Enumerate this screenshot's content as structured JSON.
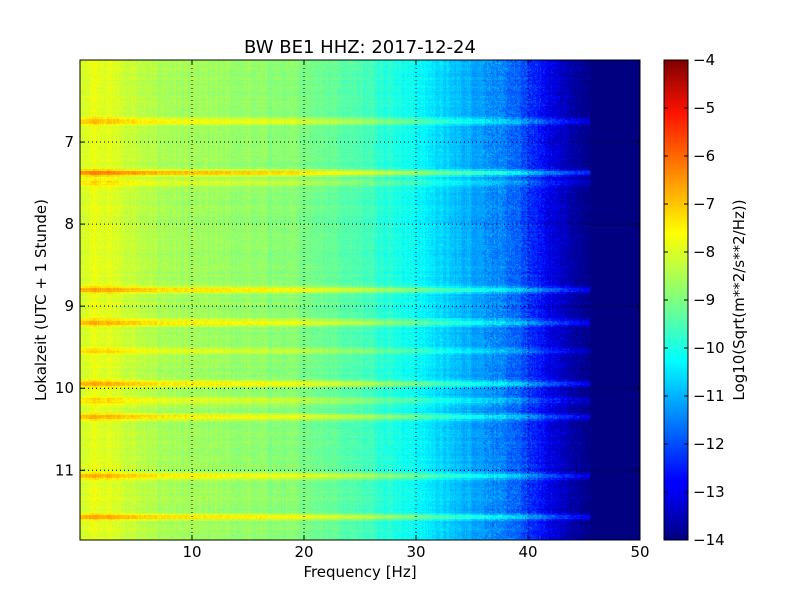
{
  "chart_data": {
    "type": "heatmap",
    "title": "BW BE1 HHZ: 2017-12-24",
    "xlabel": "Frequency [Hz]",
    "ylabel": "Lokalzeit (UTC + 1 Stunde)",
    "xlim": [
      0,
      50
    ],
    "ylim": [
      6.0,
      11.85
    ],
    "y_inverted": true,
    "x_ticks": [
      10,
      20,
      30,
      40,
      50
    ],
    "x_tick_labels": [
      "10",
      "20",
      "30",
      "40",
      "50"
    ],
    "y_ticks": [
      7,
      8,
      9,
      10,
      11
    ],
    "y_tick_labels": [
      "7",
      "8",
      "9",
      "10",
      "11"
    ],
    "grid": true,
    "colormap": "jet",
    "colorbar": {
      "label": "Log10(Sqrt(m**2/s**2/Hz))",
      "range": [
        -14,
        -4
      ],
      "ticks": [
        -4,
        -5,
        -6,
        -7,
        -8,
        -9,
        -10,
        -11,
        -12,
        -13,
        -14
      ],
      "tick_labels": [
        "−4",
        "−5",
        "−6",
        "−7",
        "−8",
        "−9",
        "−10",
        "−11",
        "−12",
        "−13",
        "−14"
      ]
    },
    "spectrum_profile": [
      {
        "freq": 0,
        "value": -8.3
      },
      {
        "freq": 1,
        "value": -7.9
      },
      {
        "freq": 3,
        "value": -8.1
      },
      {
        "freq": 6,
        "value": -8.5
      },
      {
        "freq": 10,
        "value": -8.7
      },
      {
        "freq": 15,
        "value": -8.8
      },
      {
        "freq": 20,
        "value": -9.0
      },
      {
        "freq": 25,
        "value": -9.5
      },
      {
        "freq": 30,
        "value": -10.2
      },
      {
        "freq": 33,
        "value": -10.8
      },
      {
        "freq": 36,
        "value": -11.2
      },
      {
        "freq": 39,
        "value": -11.8
      },
      {
        "freq": 41,
        "value": -12.6
      },
      {
        "freq": 43,
        "value": -13.3
      },
      {
        "freq": 45,
        "value": -13.9
      },
      {
        "freq": 50,
        "value": -14.0
      }
    ],
    "high_amplitude_bands": [
      {
        "time": 6.75,
        "boost": 0.9
      },
      {
        "time": 7.38,
        "boost": 1.5
      },
      {
        "time": 7.5,
        "boost": 0.6
      },
      {
        "time": 8.8,
        "boost": 1.1
      },
      {
        "time": 9.2,
        "boost": 1.1
      },
      {
        "time": 9.55,
        "boost": 0.6
      },
      {
        "time": 9.95,
        "boost": 1.0
      },
      {
        "time": 10.15,
        "boost": 0.6
      },
      {
        "time": 10.35,
        "boost": 1.0
      },
      {
        "time": 11.07,
        "boost": 1.0
      },
      {
        "time": 11.57,
        "boost": 1.1
      }
    ]
  }
}
